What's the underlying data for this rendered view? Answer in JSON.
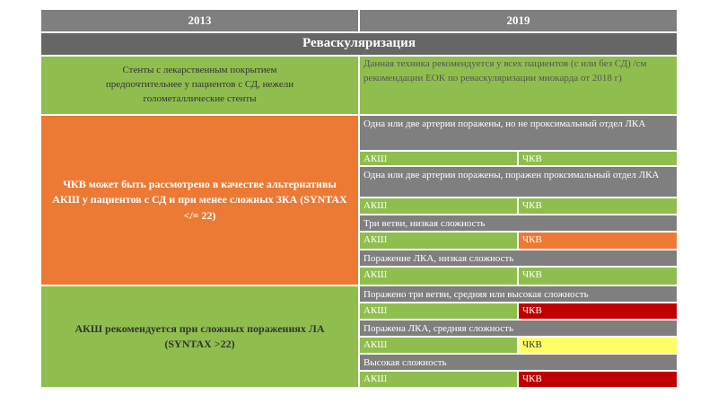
{
  "header": {
    "columns": [
      "2013",
      "2019"
    ]
  },
  "title": "Реваскуляризация",
  "stents": {
    "left": "Стенты с лекарственным покрытием предпочтительнее у пациентов с СД, нежели голометаллические стенты",
    "right": "Данная техника рекомендуется у всех пациентов (с или без СД) /см рекомендации ЕОК по реваскуляризации миокарда от 2018 г)"
  },
  "groups": [
    {
      "left": "ЧКВ может быть рассмотрено в качестве альтернативы АКШ у пациентов с СД и при менее сложных ЗКА (SYNTAX </= 22)",
      "items": [
        {
          "condition": "Одна или две артерии поражены, но не проксимальный отдел ЛКА",
          "cabg": "АКШ",
          "pci": "ЧКВ"
        },
        {
          "condition": "Одна или две артерии поражены, поражен проксимальный отдел ЛКА",
          "cabg": "АКШ",
          "pci": "ЧКВ"
        },
        {
          "condition": "Три ветви, низкая сложность",
          "cabg": "АКШ",
          "pci": "ЧКВ"
        },
        {
          "condition": "Поражение ЛКА, низкая сложность",
          "cabg": "АКШ",
          "pci": "ЧКВ"
        }
      ]
    },
    {
      "left": "АКШ рекомендуется при сложных поражениях ЛА (SYNTAX >22)",
      "items": [
        {
          "condition": "Поражено три ветви, средняя или высокая сложность",
          "cabg": "АКШ",
          "pci": "ЧКВ"
        },
        {
          "condition": "Поражена ЛКА, средняя сложность",
          "cabg": "АКШ",
          "pci": "ЧКВ"
        },
        {
          "condition": "Высокая сложность",
          "cabg": "АКШ",
          "pci": "ЧКВ"
        }
      ]
    }
  ]
}
